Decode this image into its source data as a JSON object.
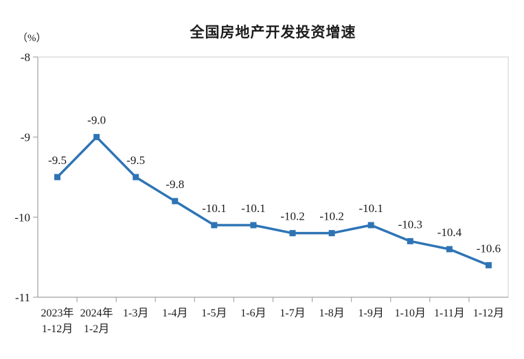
{
  "chart_data": {
    "type": "line",
    "title": "全国房地产开发投资增速",
    "unit_label": "（%）",
    "categories": [
      [
        "2023年",
        "1-12月"
      ],
      [
        "2024年",
        "1-2月"
      ],
      [
        "1-3月"
      ],
      [
        "1-4月"
      ],
      [
        "1-5月"
      ],
      [
        "1-6月"
      ],
      [
        "1-7月"
      ],
      [
        "1-8月"
      ],
      [
        "1-9月"
      ],
      [
        "1-10月"
      ],
      [
        "1-11月"
      ],
      [
        "1-12月"
      ]
    ],
    "values": [
      -9.5,
      -9.0,
      -9.5,
      -9.8,
      -10.1,
      -10.1,
      -10.2,
      -10.2,
      -10.1,
      -10.3,
      -10.4,
      -10.6
    ],
    "data_labels": [
      "-9.5",
      "-9.0",
      "-9.5",
      "-9.8",
      "-10.1",
      "-10.1",
      "-10.2",
      "-10.2",
      "-10.1",
      "-10.3",
      "-10.4",
      "-10.6"
    ],
    "xlabel": "",
    "ylabel": "（%）",
    "y_ticks": [
      -8,
      -9,
      -10,
      -11
    ],
    "ylim": [
      -11,
      -8
    ],
    "grid": false,
    "legend": false,
    "series_color": "#2E74B5",
    "axis_color": "#a6a6a6",
    "frame_color": "#d6d6d6",
    "text_color": "#1a1a1a"
  }
}
